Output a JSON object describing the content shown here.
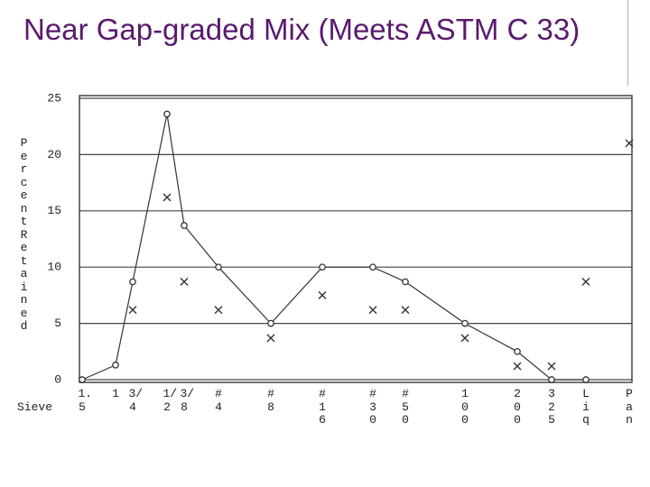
{
  "title": "Near Gap-graded Mix (Meets ASTM C 33)",
  "chart_data": {
    "type": "line",
    "ylabel": "Percent Retained",
    "xlabel": "Sieve",
    "categories": [
      "1.5",
      "1",
      "3/4",
      "1/2",
      "3/8",
      "#4",
      "#8",
      "#16",
      "#30",
      "#50",
      "100",
      "200",
      "325",
      "Liq",
      "Pan"
    ],
    "series": [
      {
        "color": "#333333",
        "marker": "circle",
        "values": [
          0,
          1.3,
          8.7,
          23.6,
          13.7,
          10,
          5,
          10,
          10,
          8.7,
          5,
          2.5,
          0,
          0,
          null
        ]
      },
      {
        "color": "#333333",
        "marker": "x",
        "values": [
          null,
          null,
          6.2,
          16.2,
          8.7,
          6.2,
          3.7,
          7.5,
          6.2,
          6.2,
          3.7,
          1.2,
          1.2,
          8.7,
          21
        ]
      }
    ],
    "ylim": [
      0,
      25
    ],
    "yticks": [
      0,
      5,
      10,
      15,
      20,
      25
    ],
    "grid": true
  }
}
